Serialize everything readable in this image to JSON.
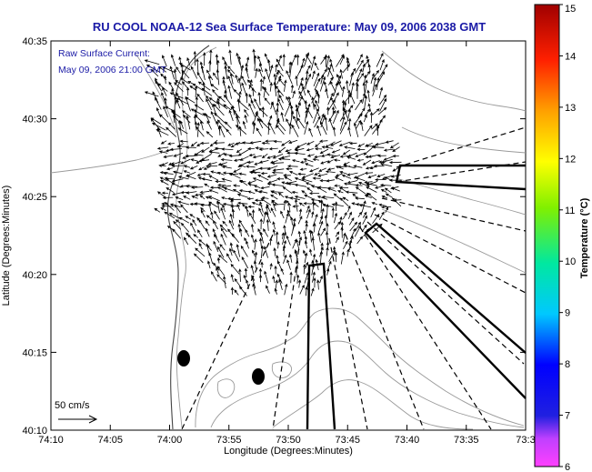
{
  "title": "RU COOL  NOAA-12  Sea Surface Temperature:  May 09, 2006 2038 GMT",
  "legend": {
    "line1": "Raw Surface Current:",
    "line2": "May 09, 2006 21:00 GMT",
    "scale_label": "50 cm/s"
  },
  "axes": {
    "xlabel": "Longitude (Degrees:Minutes)",
    "ylabel": "Latitude (Degrees:Minutes)",
    "x_ticks": [
      "74:10",
      "74:05",
      "74:00",
      "73:55",
      "73:50",
      "73:45",
      "73:40",
      "73:35",
      "73:3"
    ],
    "y_ticks": [
      "40:10",
      "40:15",
      "40:20",
      "40:25",
      "40:30",
      "40:35"
    ]
  },
  "colorbar": {
    "title": "Temperature (°C)",
    "labels": [
      "6",
      "7",
      "8",
      "9",
      "10",
      "11",
      "12",
      "13",
      "14",
      "15"
    ],
    "min": 6,
    "max": 15
  }
}
